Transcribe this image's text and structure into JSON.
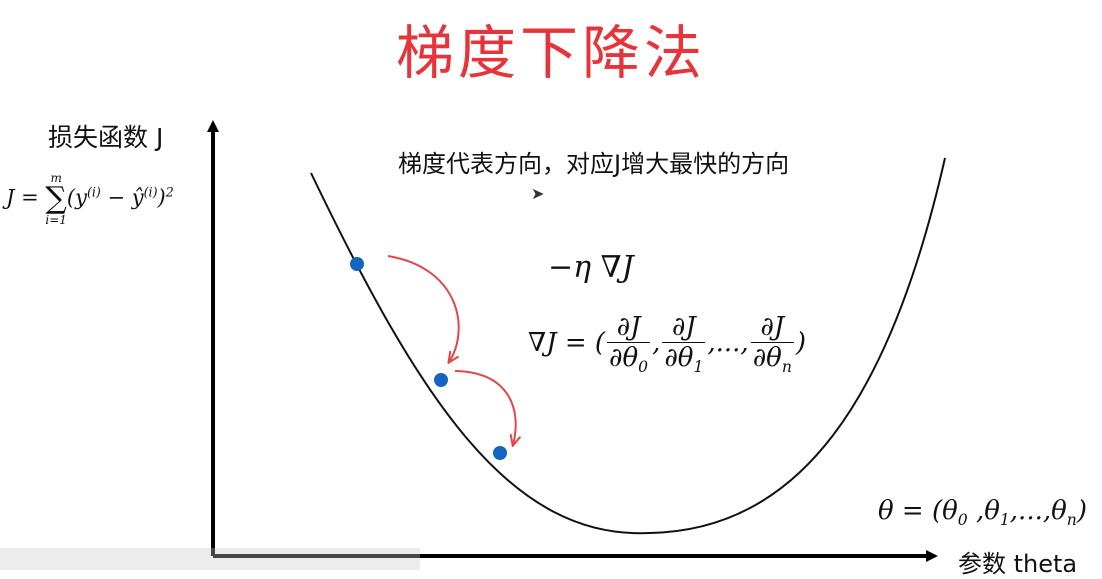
{
  "title": "梯度下降法",
  "axes": {
    "y_label": "损失函数 J",
    "x_label": "参数 theta"
  },
  "description": "梯度代表方向，对应J增大最快的方向",
  "formulas": {
    "loss": {
      "lhs": "J = ",
      "sum_top": "m",
      "sum_bottom": "i=1",
      "body": "(y",
      "sup1": "(i)",
      "mid": " − ŷ",
      "sup2": "(i)",
      "tail": ")",
      "power": "2"
    },
    "step": "−η ∇J",
    "gradient": {
      "lhs": "∇J = (",
      "num": "∂J",
      "d0": "∂θ",
      "s0": "0",
      "d1": "∂θ",
      "s1": "1",
      "dots": ",...,",
      "dn": "∂θ",
      "sn": "n",
      "rhs": ")"
    },
    "theta": {
      "lhs": "θ = (θ",
      "s0": "0",
      "c1": " ,θ",
      "s1": "1",
      "dots": ",...,θ",
      "sn": "n",
      "rhs": ")"
    }
  },
  "colors": {
    "title": "#e5353a",
    "point": "#1565c0",
    "arrow": "#e04848",
    "axis": "#000000"
  },
  "icons": {
    "cursor": "mouse-pointer-icon"
  }
}
